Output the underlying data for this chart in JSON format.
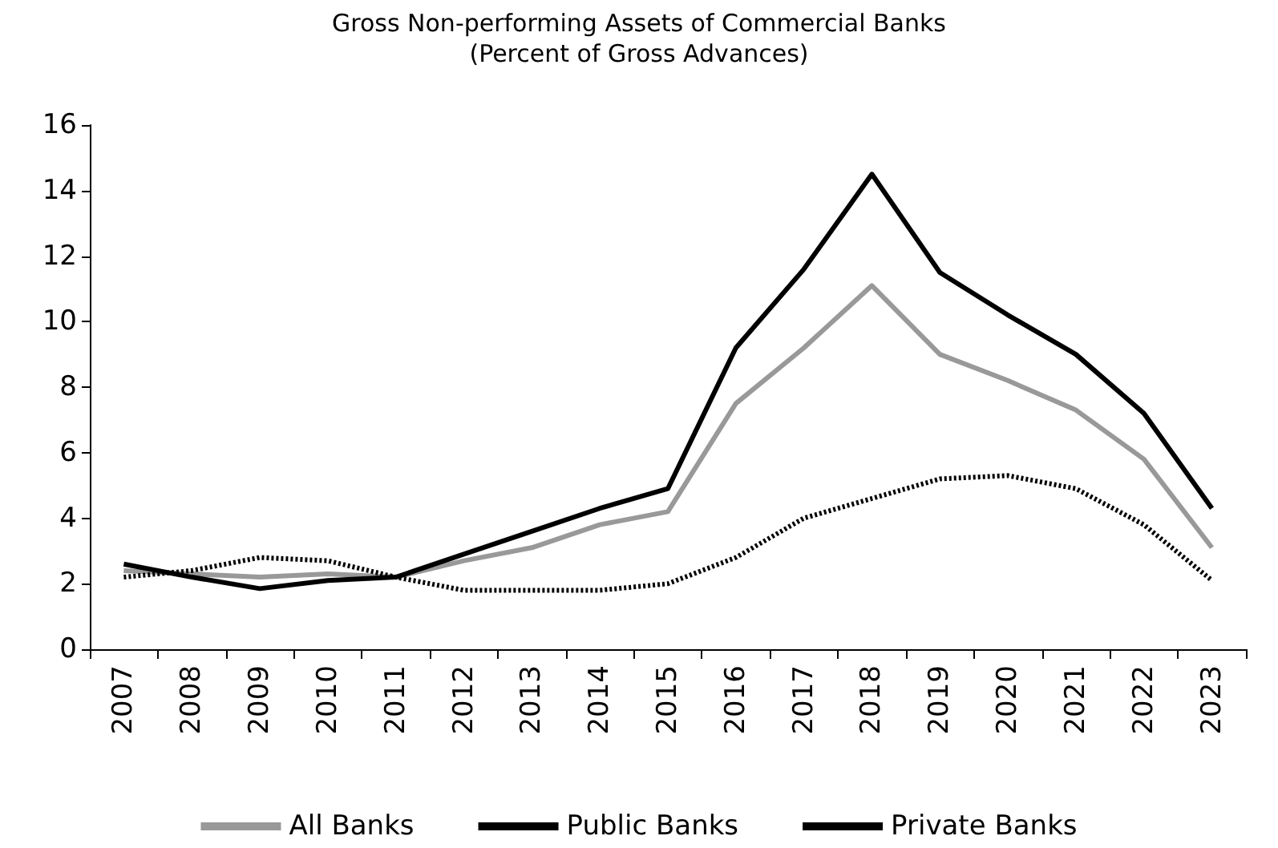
{
  "chart_data": {
    "type": "line",
    "title": "Gross Non-performing Assets of Commercial Banks",
    "subtitle": "(Percent of Gross Advances)",
    "categories": [
      "2007",
      "2008",
      "2009",
      "2010",
      "2011",
      "2012",
      "2013",
      "2014",
      "2015",
      "2016",
      "2017",
      "2018",
      "2019",
      "2020",
      "2021",
      "2022",
      "2023"
    ],
    "series": [
      {
        "name": "All Banks",
        "color": "#999999",
        "line_style": "solid",
        "values": [
          2.4,
          2.3,
          2.2,
          2.3,
          2.2,
          2.7,
          3.1,
          3.8,
          4.2,
          7.5,
          9.2,
          11.1,
          9.0,
          8.2,
          7.3,
          5.8,
          3.1
        ]
      },
      {
        "name": "Public Banks",
        "color": "#000000",
        "line_style": "solid",
        "values": [
          2.6,
          2.2,
          1.85,
          2.1,
          2.2,
          2.9,
          3.6,
          4.3,
          4.9,
          9.2,
          11.6,
          14.5,
          11.5,
          10.2,
          9.0,
          7.2,
          4.3
        ]
      },
      {
        "name": "Private Banks",
        "color": "#000000",
        "line_style": "dotted",
        "values": [
          2.2,
          2.4,
          2.8,
          2.7,
          2.2,
          1.8,
          1.8,
          1.8,
          2.0,
          2.8,
          4.0,
          4.6,
          5.2,
          5.3,
          4.9,
          3.8,
          2.1
        ]
      }
    ],
    "ylim": [
      0,
      16
    ],
    "yticks": [
      0,
      2,
      4,
      6,
      8,
      10,
      12,
      14,
      16
    ],
    "grid": false,
    "legend": "bottom",
    "marker": "none"
  }
}
